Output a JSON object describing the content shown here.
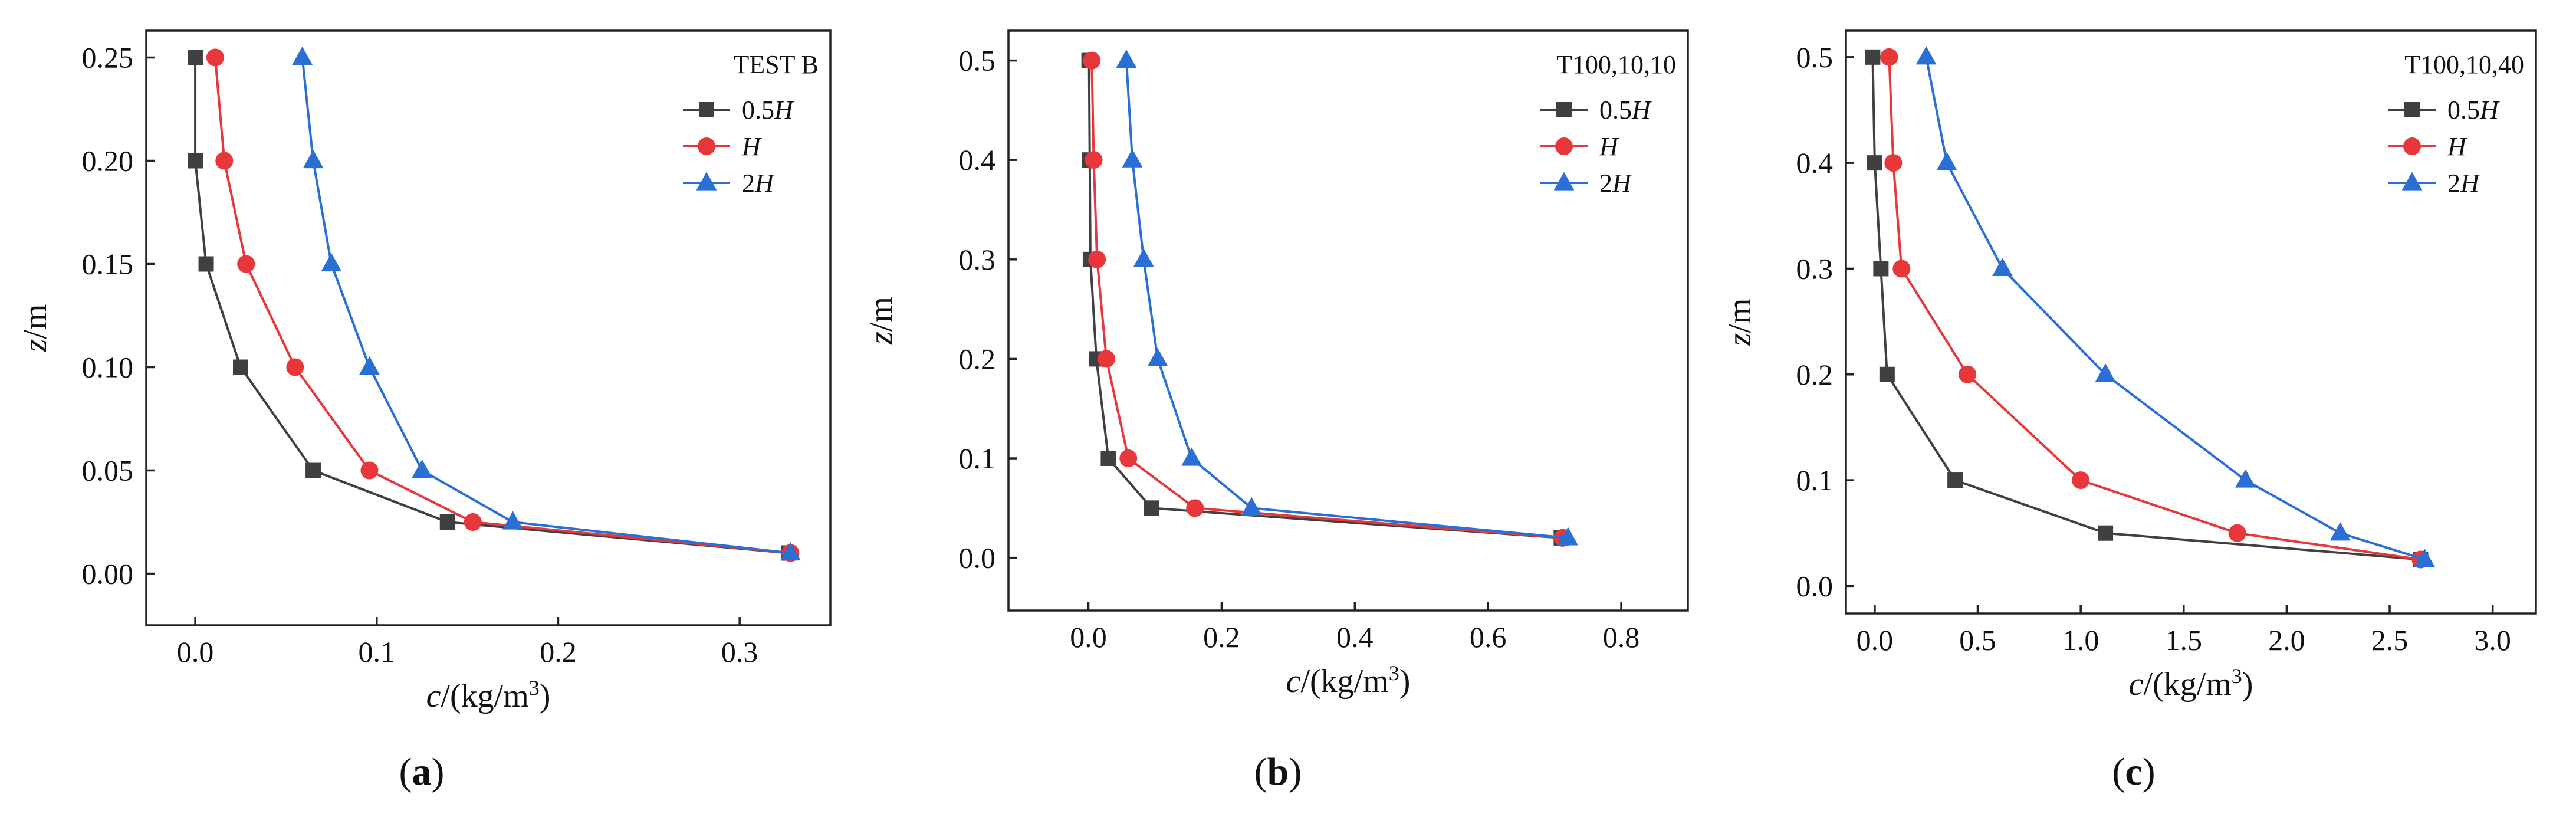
{
  "chart_data": [
    {
      "type": "line",
      "panel": "a",
      "caption_letter": "a",
      "title": "",
      "legend_title": "TEST B",
      "xlabel": {
        "var": "c",
        "unit": "/(kg/m",
        "sup": "3",
        "close": ")"
      },
      "ylabel": "z/m",
      "xlim": [
        -0.027,
        0.35
      ],
      "ylim": [
        -0.025,
        0.263
      ],
      "xticks": [
        0.0,
        0.1,
        0.2,
        0.3
      ],
      "xtick_labels": [
        "0.0",
        "0.1",
        "0.2",
        "0.3"
      ],
      "yticks": [
        0.0,
        0.05,
        0.1,
        0.15,
        0.2,
        0.25
      ],
      "ytick_labels": [
        "0.00",
        "0.05",
        "0.10",
        "0.15",
        "0.20",
        "0.25"
      ],
      "series": [
        {
          "name": "0.5",
          "name_suffix": "H",
          "color": "#404040",
          "marker": "square",
          "x": [
            0.0,
            0.0,
            0.006,
            0.025,
            0.065,
            0.139,
            0.327
          ],
          "y": [
            0.25,
            0.2,
            0.15,
            0.1,
            0.05,
            0.025,
            0.01
          ]
        },
        {
          "name": "",
          "name_suffix": "H",
          "color": "#e8373a",
          "marker": "circle",
          "x": [
            0.011,
            0.016,
            0.028,
            0.055,
            0.096,
            0.153,
            0.328
          ],
          "y": [
            0.25,
            0.2,
            0.15,
            0.1,
            0.05,
            0.025,
            0.01
          ]
        },
        {
          "name": "2",
          "name_suffix": "H",
          "color": "#2a6fd6",
          "marker": "triangle",
          "x": [
            0.059,
            0.065,
            0.075,
            0.096,
            0.125,
            0.175,
            0.328
          ],
          "y": [
            0.25,
            0.2,
            0.15,
            0.1,
            0.05,
            0.025,
            0.01
          ]
        }
      ]
    },
    {
      "type": "line",
      "panel": "b",
      "caption_letter": "b",
      "title": "",
      "legend_title": "T100,10,10",
      "xlabel": {
        "var": "c",
        "unit": "/(kg/m",
        "sup": "3",
        "close": ")"
      },
      "ylabel": "z/m",
      "xlim": [
        -0.12,
        0.9
      ],
      "ylim": [
        -0.053,
        0.53
      ],
      "xticks": [
        0.0,
        0.2,
        0.4,
        0.6,
        0.8
      ],
      "xtick_labels": [
        "0.0",
        "0.2",
        "0.4",
        "0.6",
        "0.8"
      ],
      "yticks": [
        0.0,
        0.1,
        0.2,
        0.3,
        0.4,
        0.5
      ],
      "ytick_labels": [
        "0.0",
        "0.1",
        "0.2",
        "0.3",
        "0.4",
        "0.5"
      ],
      "series": [
        {
          "name": "0.5",
          "name_suffix": "H",
          "color": "#404040",
          "marker": "square",
          "x": [
            0.001,
            0.002,
            0.003,
            0.012,
            0.03,
            0.095,
            0.71
          ],
          "y": [
            0.5,
            0.4,
            0.3,
            0.2,
            0.1,
            0.05,
            0.02
          ]
        },
        {
          "name": "",
          "name_suffix": "H",
          "color": "#e8373a",
          "marker": "circle",
          "x": [
            0.005,
            0.008,
            0.013,
            0.027,
            0.06,
            0.16,
            0.712
          ],
          "y": [
            0.5,
            0.4,
            0.3,
            0.2,
            0.1,
            0.05,
            0.02
          ]
        },
        {
          "name": "2",
          "name_suffix": "H",
          "color": "#2a6fd6",
          "marker": "triangle",
          "x": [
            0.057,
            0.066,
            0.083,
            0.104,
            0.155,
            0.245,
            0.72
          ],
          "y": [
            0.5,
            0.4,
            0.3,
            0.2,
            0.1,
            0.05,
            0.02
          ]
        }
      ]
    },
    {
      "type": "line",
      "panel": "c",
      "caption_letter": "c",
      "title": "",
      "legend_title": "T100,10,40",
      "xlabel": {
        "var": "c",
        "unit": "/(kg/m",
        "sup": "3",
        "close": ")"
      },
      "ylabel": "z/m",
      "xlim": [
        -0.14,
        3.21
      ],
      "ylim": [
        -0.026,
        0.525
      ],
      "xticks": [
        0.0,
        0.5,
        1.0,
        1.5,
        2.0,
        2.5,
        3.0
      ],
      "xtick_labels": [
        "0.0",
        "0.5",
        "1.0",
        "1.5",
        "2.0",
        "2.5",
        "3.0"
      ],
      "yticks": [
        0.0,
        0.1,
        0.2,
        0.3,
        0.4,
        0.5
      ],
      "ytick_labels": [
        "0.0",
        "0.1",
        "0.2",
        "0.3",
        "0.4",
        "0.5"
      ],
      "series": [
        {
          "name": "0.5",
          "name_suffix": "H",
          "color": "#404040",
          "marker": "square",
          "x": [
            -0.01,
            0.0,
            0.03,
            0.06,
            0.39,
            1.12,
            2.65
          ],
          "y": [
            0.5,
            0.4,
            0.3,
            0.2,
            0.1,
            0.05,
            0.025
          ]
        },
        {
          "name": "",
          "name_suffix": "H",
          "color": "#e8373a",
          "marker": "circle",
          "x": [
            0.07,
            0.09,
            0.13,
            0.45,
            1.0,
            1.76,
            2.65
          ],
          "y": [
            0.5,
            0.4,
            0.3,
            0.2,
            0.1,
            0.05,
            0.025
          ]
        },
        {
          "name": "2",
          "name_suffix": "H",
          "color": "#2a6fd6",
          "marker": "triangle",
          "x": [
            0.25,
            0.35,
            0.62,
            1.12,
            1.8,
            2.26,
            2.67
          ],
          "y": [
            0.5,
            0.4,
            0.3,
            0.2,
            0.1,
            0.05,
            0.025
          ]
        }
      ]
    }
  ]
}
